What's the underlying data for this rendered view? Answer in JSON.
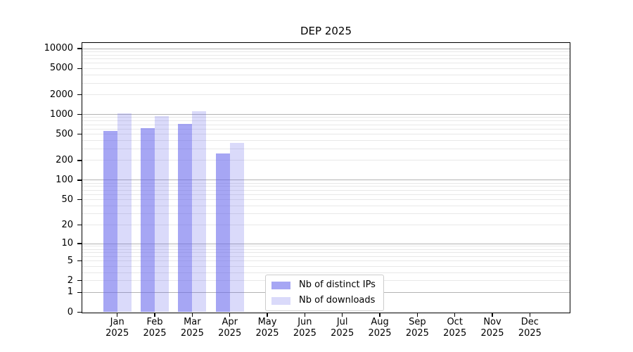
{
  "chart_data": {
    "type": "bar",
    "title": "DEP 2025",
    "categories": [
      "Jan",
      "Feb",
      "Mar",
      "Apr",
      "May",
      "Jun",
      "Jul",
      "Aug",
      "Sep",
      "Oct",
      "Nov",
      "Dec"
    ],
    "category_year": "2025",
    "series": [
      {
        "name": "Nb of distinct IPs",
        "base_color": "#6666ec",
        "alpha": 0.58,
        "apparent_color": "#a6a6f4",
        "values": [
          560,
          625,
          720,
          258,
          0,
          0,
          0,
          0,
          0,
          0,
          0,
          0
        ]
      },
      {
        "name": "Nb of downloads",
        "base_color": "#6666ec",
        "alpha": 0.24,
        "apparent_color": "#dadaf9",
        "values": [
          1030,
          950,
          1110,
          372,
          0,
          0,
          0,
          0,
          0,
          0,
          0,
          0
        ]
      }
    ],
    "y_axis": {
      "scale": "log1p",
      "tick_values": [
        0,
        1,
        2,
        5,
        10,
        20,
        50,
        100,
        200,
        500,
        1000,
        2000,
        5000,
        10000
      ],
      "major_gridline_values": [
        1,
        10,
        100,
        1000,
        10000
      ],
      "range": [
        0,
        12200
      ],
      "grid": true
    },
    "x_axis": {
      "tick_count": 12
    },
    "legend": {
      "location": "lower-center-inside"
    },
    "grid_colors": {
      "major": "#b3b3b3",
      "minor": "#e8e8e8"
    },
    "axis_color": "#000000",
    "background_color": "#ffffff"
  }
}
